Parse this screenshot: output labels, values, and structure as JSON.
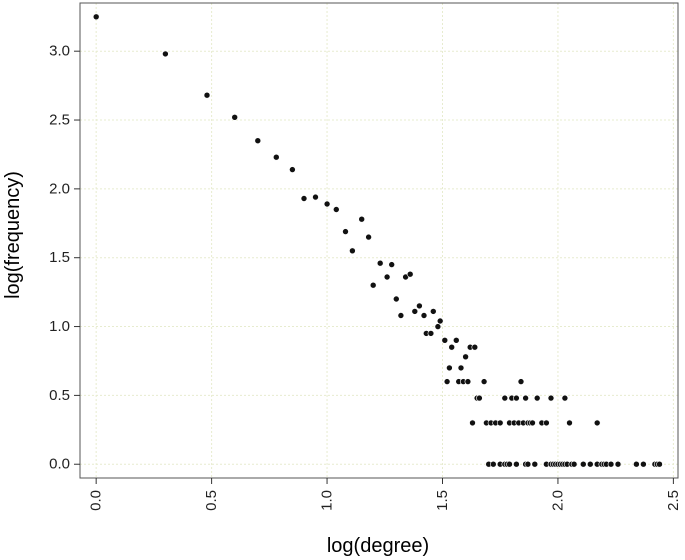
{
  "chart_data": {
    "type": "scatter",
    "title": "",
    "xlabel": "log(degree)",
    "ylabel": "log(frequency)",
    "xlim": [
      -0.07,
      2.52
    ],
    "ylim": [
      -0.1,
      3.35
    ],
    "xticks": [
      "0.0",
      "0.5",
      "1.0",
      "1.5",
      "2.0",
      "2.5"
    ],
    "yticks": [
      "0.0",
      "0.5",
      "1.0",
      "1.5",
      "2.0",
      "2.5",
      "3.0"
    ],
    "grid": true,
    "colors": {
      "point": "#111111",
      "grid": "#e7eccf",
      "frame": "#555555"
    },
    "points": [
      [
        0.0,
        3.25
      ],
      [
        0.3,
        2.98
      ],
      [
        0.48,
        2.68
      ],
      [
        0.6,
        2.52
      ],
      [
        0.7,
        2.35
      ],
      [
        0.78,
        2.23
      ],
      [
        0.85,
        2.14
      ],
      [
        0.9,
        1.93
      ],
      [
        0.95,
        1.94
      ],
      [
        1.0,
        1.89
      ],
      [
        1.04,
        1.85
      ],
      [
        1.08,
        1.69
      ],
      [
        1.11,
        1.55
      ],
      [
        1.15,
        1.78
      ],
      [
        1.18,
        1.65
      ],
      [
        1.2,
        1.3
      ],
      [
        1.23,
        1.46
      ],
      [
        1.26,
        1.36
      ],
      [
        1.28,
        1.45
      ],
      [
        1.3,
        1.2
      ],
      [
        1.32,
        1.08
      ],
      [
        1.34,
        1.36
      ],
      [
        1.36,
        1.38
      ],
      [
        1.38,
        1.11
      ],
      [
        1.4,
        1.15
      ],
      [
        1.42,
        1.08
      ],
      [
        1.43,
        0.95
      ],
      [
        1.45,
        0.95
      ],
      [
        1.46,
        1.11
      ],
      [
        1.48,
        1.0
      ],
      [
        1.49,
        1.04
      ],
      [
        1.51,
        0.9
      ],
      [
        1.52,
        0.6
      ],
      [
        1.53,
        0.7
      ],
      [
        1.54,
        0.85
      ],
      [
        1.56,
        0.9
      ],
      [
        1.57,
        0.6
      ],
      [
        1.58,
        0.7
      ],
      [
        1.59,
        0.6
      ],
      [
        1.6,
        0.78
      ],
      [
        1.61,
        0.6
      ],
      [
        1.62,
        0.85
      ],
      [
        1.63,
        0.3
      ],
      [
        1.64,
        0.85
      ],
      [
        1.65,
        0.48
      ],
      [
        1.66,
        0.48
      ],
      [
        1.68,
        0.6
      ],
      [
        1.69,
        0.3
      ],
      [
        1.71,
        0.3
      ],
      [
        1.73,
        0.3
      ],
      [
        1.75,
        0.3
      ],
      [
        1.77,
        0.48
      ],
      [
        1.79,
        0.3
      ],
      [
        1.8,
        0.48
      ],
      [
        1.81,
        0.3
      ],
      [
        1.82,
        0.48
      ],
      [
        1.83,
        0.3
      ],
      [
        1.84,
        0.6
      ],
      [
        1.85,
        0.3
      ],
      [
        1.86,
        0.48
      ],
      [
        1.87,
        0.3
      ],
      [
        1.88,
        0.3
      ],
      [
        1.89,
        0.3
      ],
      [
        1.91,
        0.48
      ],
      [
        1.93,
        0.3
      ],
      [
        1.95,
        0.3
      ],
      [
        1.97,
        0.48
      ],
      [
        2.03,
        0.48
      ],
      [
        2.05,
        0.3
      ],
      [
        2.17,
        0.3
      ],
      [
        1.7,
        0.0
      ],
      [
        1.72,
        0.0
      ],
      [
        1.75,
        0.0
      ],
      [
        1.77,
        0.0
      ],
      [
        1.78,
        0.0
      ],
      [
        1.79,
        0.0
      ],
      [
        1.82,
        0.0
      ],
      [
        1.86,
        0.0
      ],
      [
        1.87,
        0.0
      ],
      [
        1.9,
        0.0
      ],
      [
        1.95,
        0.0
      ],
      [
        1.97,
        0.0
      ],
      [
        1.98,
        0.0
      ],
      [
        1.99,
        0.0
      ],
      [
        2.0,
        0.0
      ],
      [
        2.01,
        0.0
      ],
      [
        2.02,
        0.0
      ],
      [
        2.03,
        0.0
      ],
      [
        2.04,
        0.0
      ],
      [
        2.06,
        0.0
      ],
      [
        2.07,
        0.0
      ],
      [
        2.11,
        0.0
      ],
      [
        2.14,
        0.0
      ],
      [
        2.17,
        0.0
      ],
      [
        2.19,
        0.0
      ],
      [
        2.2,
        0.0
      ],
      [
        2.21,
        0.0
      ],
      [
        2.23,
        0.0
      ],
      [
        2.26,
        0.0
      ],
      [
        2.34,
        0.0
      ],
      [
        2.37,
        0.0
      ],
      [
        2.42,
        0.0
      ],
      [
        2.43,
        0.0
      ],
      [
        2.44,
        0.0
      ]
    ]
  }
}
